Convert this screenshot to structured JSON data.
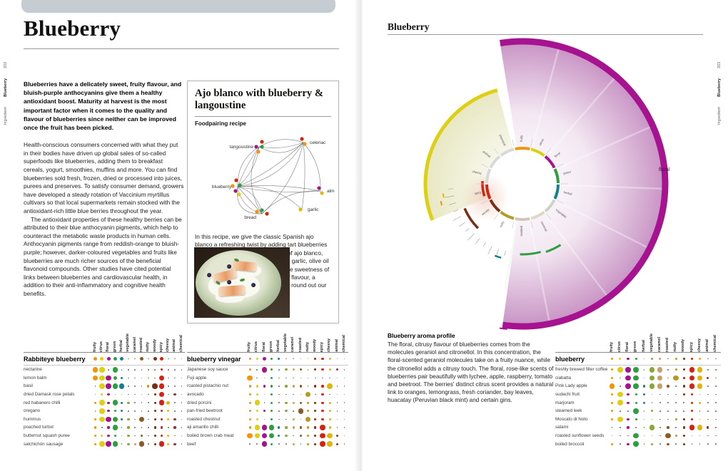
{
  "left_page": {
    "title": "Blueberry",
    "intro": "Blueberries have a delicately sweet, fruity flavour, and bluish-purple anthocyanins give them a healthy antioxidant boost. Maturity at harvest is the most important factor when it comes to the quality and flavour of blueberries since neither can be improved once the fruit has been picked.",
    "body1": "Health-conscious consumers concerned with what they put in their bodies have driven up global sales of so-called superfoods like blueberries, adding them to breakfast cereals, yogurt, smoothies, muffins and more. You can find blueberries sold fresh, frozen, dried or processed into juices, purees and preserves. To satisfy consumer demand, growers have developed a steady rotation of Vaccinium myrtillus cultivars so that local supermarkets remain stocked with the antioxidant-rich little blue berries throughout the year.",
    "body2": "The antioxidant properties of these healthy berries can be attributed to their blue anthocyanin pigments, which help to counteract the metabolic waste products in human cells. Anthocyanin pigments range from reddish-orange to bluish-purple; however, darker-coloured vegetables and fruits like blueberries are much richer sources of the beneficial flavonoid compounds. Other studies have cited potential links between blueberries and cardiovascular health, in addition to their anti-inflammatory and cognitive health benefits.",
    "recipe": {
      "title": "Ajo blanco with blueberry & langoustine",
      "subtitle": "Foodpairing recipe",
      "nodes": [
        "langoustine",
        "celeriac",
        "blueberry",
        "almond",
        "bread",
        "garlic"
      ],
      "text": "In this recipe, we give the classic Spanish ajo blanco a refreshing twist by adding tart blueberries as an accent. The mild sweet taste of ajo blanco, which is made from almonds, bread, garlic, olive oil and vinegar, pairs well with the subtle sweetness of steamed langoustines. With its nutty flavour, a garnish of braised celeriac serves to round out our dish."
    }
  },
  "right_page": {
    "title": "Blueberry",
    "wheel": {
      "outer_label": "floral",
      "categories": [
        "fruity",
        "citrus",
        "floral",
        "green",
        "herbal",
        "vegetable",
        "caramel",
        "roasted",
        "nutty",
        "woody",
        "spicy",
        "cheesy",
        "animal",
        "chemical"
      ],
      "arcs": [
        {
          "category": "floral",
          "start": -9,
          "end": 188,
          "radius": 200
        },
        {
          "category": "citrus",
          "start": -112,
          "end": -15,
          "radius": 136
        },
        {
          "category": "green",
          "start": 148,
          "end": 161,
          "radius": 101
        },
        {
          "category": "green",
          "start": 165,
          "end": 182,
          "radius": 99
        },
        {
          "category": "herbal",
          "start": 196,
          "end": 201,
          "radius": 108
        },
        {
          "category": "woody",
          "start": 225,
          "end": 247,
          "radius": 88
        },
        {
          "category": "spicy",
          "start": 252,
          "end": 274,
          "radius": 56
        },
        {
          "category": "floral",
          "start": 186,
          "end": 189,
          "radius": 205
        },
        {
          "category": "cheesy",
          "start": 260,
          "end": 263,
          "radius": 112
        },
        {
          "category": "fruity",
          "start": 255,
          "end": 258,
          "radius": 117
        }
      ]
    },
    "aroma_profile": {
      "title": "Blueberry aroma profile",
      "text": "The floral, citrusy flavour of blueberries comes from the molecules geraniol and citronellol. In this concentration, the floral-scented geraniol molecules take on a fruity nuance, while the citronellol adds a citrusy touch. The floral, rose-like scents of blueberries pair beautifully with lychee, apple, raspberry, tomato and beetroot. The berries' distinct citrus scent provides a natural link to oranges, lemongrass, fresh coriander, bay leaves, huacatay (Peruvian black mint) and certain gins."
    }
  },
  "aroma_categories": [
    "fruity",
    "citrus",
    "floral",
    "green",
    "herbal",
    "vegetable",
    "caramel",
    "roasted",
    "nutty",
    "woody",
    "spicy",
    "cheesy",
    "animal",
    "chemical"
  ],
  "colors": {
    "fruity": "#f0950f",
    "citrus": "#ddd012",
    "floral": "#a6128f",
    "green": "#2f9e41",
    "herbal": "#177f8e",
    "vegetable": "#8aa83c",
    "caramel": "#c8a06a",
    "roasted": "#8a5a28",
    "nutty": "#b39b27",
    "woody": "#7c2d12",
    "spicy": "#d42313",
    "cheesy": "#e3b505",
    "animal": "#97322e",
    "chemical": "#9a9a9a"
  },
  "tables": [
    {
      "title": "Rabbiteye blueberry",
      "header_dots": [
        2,
        2,
        2,
        2,
        2,
        0,
        0,
        2,
        0,
        2,
        2,
        0,
        0,
        0
      ],
      "rows": [
        {
          "label": "nectarine",
          "dots": [
            3,
            3,
            0,
            3,
            0,
            0,
            0,
            0,
            0,
            0,
            1,
            0,
            0,
            0
          ]
        },
        {
          "label": "lemon balm",
          "dots": [
            3,
            3,
            3,
            2,
            1,
            0,
            0,
            0,
            0,
            0,
            3,
            0,
            0,
            0
          ]
        },
        {
          "label": "basil",
          "dots": [
            0,
            3,
            3,
            3,
            3,
            0,
            0,
            0,
            1,
            3,
            3,
            0,
            0,
            0
          ]
        },
        {
          "label": "dried Damask rose petals",
          "dots": [
            0,
            1,
            1,
            0,
            0,
            0,
            0,
            0,
            0,
            1,
            3,
            0,
            1,
            0
          ]
        },
        {
          "label": "red habanero chilli",
          "dots": [
            1,
            3,
            1,
            3,
            1,
            1,
            0,
            0,
            0,
            1,
            3,
            2,
            0,
            0
          ]
        },
        {
          "label": "oregano",
          "dots": [
            0,
            3,
            1,
            1,
            1,
            0,
            0,
            0,
            0,
            1,
            1,
            1,
            0,
            0
          ]
        },
        {
          "label": "hummus",
          "dots": [
            1,
            3,
            3,
            3,
            1,
            1,
            0,
            3,
            0,
            1,
            1,
            1,
            1,
            0
          ]
        },
        {
          "label": "poached turbot",
          "dots": [
            1,
            0,
            1,
            3,
            0,
            1,
            0,
            0,
            0,
            1,
            1,
            0,
            1,
            0
          ]
        },
        {
          "label": "butternut squash puree",
          "dots": [
            1,
            1,
            1,
            1,
            0,
            1,
            0,
            1,
            0,
            1,
            1,
            1,
            0,
            0
          ]
        },
        {
          "label": "salchichón sausage",
          "dots": [
            1,
            3,
            3,
            3,
            0,
            1,
            1,
            3,
            0,
            1,
            3,
            1,
            1,
            0
          ]
        }
      ]
    },
    {
      "title": "blueberry vinegar",
      "header_dots": [
        1,
        1,
        2,
        1,
        1,
        0,
        0,
        0,
        0,
        1,
        1,
        1,
        0,
        0
      ],
      "rows": [
        {
          "label": "Japanese soy sauce",
          "dots": [
            1,
            0,
            3,
            1,
            0,
            1,
            1,
            1,
            0,
            1,
            1,
            1,
            1,
            0
          ]
        },
        {
          "label": "Fuji apple",
          "dots": [
            3,
            0,
            0,
            1,
            0,
            0,
            0,
            0,
            0,
            0,
            0,
            0,
            0,
            0
          ]
        },
        {
          "label": "roasted pistachio nut",
          "dots": [
            1,
            1,
            1,
            1,
            0,
            1,
            1,
            1,
            0,
            1,
            1,
            3,
            0,
            0
          ]
        },
        {
          "label": "avocado",
          "dots": [
            1,
            1,
            0,
            1,
            0,
            0,
            0,
            0,
            3,
            0,
            1,
            0,
            0,
            0
          ]
        },
        {
          "label": "dried porcini",
          "dots": [
            1,
            3,
            0,
            1,
            0,
            1,
            1,
            1,
            1,
            1,
            1,
            1,
            0,
            0
          ]
        },
        {
          "label": "pan-fried beetroot",
          "dots": [
            1,
            1,
            1,
            1,
            0,
            1,
            0,
            3,
            1,
            1,
            1,
            1,
            0,
            0
          ]
        },
        {
          "label": "roasted chestnut",
          "dots": [
            1,
            1,
            0,
            1,
            0,
            0,
            1,
            0,
            3,
            1,
            1,
            1,
            0,
            0
          ]
        },
        {
          "label": "aji amarillo chilli",
          "dots": [
            1,
            3,
            3,
            3,
            1,
            1,
            1,
            1,
            1,
            1,
            3,
            1,
            0,
            0
          ]
        },
        {
          "label": "boiled brown crab meat",
          "dots": [
            3,
            3,
            3,
            3,
            1,
            1,
            0,
            1,
            1,
            1,
            3,
            3,
            1,
            0
          ]
        },
        {
          "label": "beef",
          "dots": [
            0,
            0,
            3,
            1,
            0,
            0,
            1,
            0,
            1,
            1,
            3,
            3,
            1,
            0
          ]
        }
      ]
    },
    {
      "title": "blueberry",
      "header_dots": [
        1,
        1,
        1,
        1,
        0,
        1,
        1,
        0,
        1,
        1,
        1,
        1,
        0,
        0
      ],
      "rows": [
        {
          "label": "freshly brewed filter coffee",
          "dots": [
            1,
            3,
            3,
            3,
            0,
            3,
            3,
            0,
            1,
            1,
            3,
            3,
            0,
            0
          ]
        },
        {
          "label": "ciabatta",
          "dots": [
            1,
            0,
            3,
            3,
            0,
            3,
            3,
            0,
            3,
            1,
            3,
            3,
            1,
            0
          ]
        },
        {
          "label": "Pink Lady apple",
          "dots": [
            3,
            0,
            3,
            3,
            1,
            3,
            3,
            1,
            0,
            1,
            3,
            3,
            0,
            0
          ]
        },
        {
          "label": "sudachi fruit",
          "dots": [
            1,
            3,
            1,
            1,
            1,
            0,
            0,
            0,
            0,
            1,
            1,
            0,
            0,
            0
          ]
        },
        {
          "label": "marjoram",
          "dots": [
            1,
            3,
            1,
            1,
            1,
            0,
            0,
            0,
            0,
            0,
            1,
            1,
            0,
            0
          ]
        },
        {
          "label": "steamed leek",
          "dots": [
            1,
            0,
            0,
            3,
            0,
            1,
            0,
            0,
            0,
            0,
            1,
            0,
            0,
            0
          ]
        },
        {
          "label": "Moscato di Noto",
          "dots": [
            1,
            3,
            1,
            1,
            0,
            0,
            0,
            0,
            1,
            1,
            1,
            0,
            0,
            0
          ]
        },
        {
          "label": "salami",
          "dots": [
            0,
            0,
            1,
            0,
            0,
            3,
            0,
            1,
            0,
            1,
            3,
            3,
            1,
            0
          ]
        },
        {
          "label": "roasted sunflower seeds",
          "dots": [
            0,
            0,
            0,
            3,
            0,
            0,
            0,
            3,
            1,
            1,
            0,
            0,
            0,
            0
          ]
        },
        {
          "label": "boiled broccoli",
          "dots": [
            1,
            0,
            1,
            3,
            0,
            1,
            0,
            1,
            0,
            1,
            0,
            0,
            0,
            0
          ]
        }
      ]
    }
  ],
  "edges": {
    "left": {
      "section": "Ingredient",
      "chapter": "Blueberry",
      "page": "202"
    },
    "right": {
      "section": "Ingredient",
      "chapter": "Blueberry",
      "page": "203"
    }
  }
}
